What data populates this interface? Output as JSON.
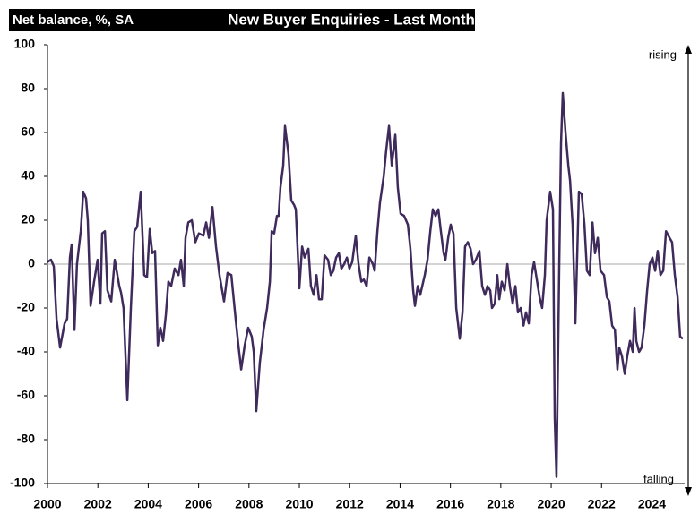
{
  "chart_data": {
    "type": "line",
    "title": "New Buyer Enquiries - Last Month",
    "y_label": "Net balance, %, SA",
    "annotations": [
      "rising",
      "falling"
    ],
    "x": [
      2000.0,
      2000.14,
      2000.25,
      2000.36,
      2000.5,
      2000.68,
      2000.78,
      2000.89,
      2000.96,
      2001.07,
      2001.17,
      2001.32,
      2001.42,
      2001.53,
      2001.6,
      2001.71,
      2001.85,
      2001.99,
      2002.1,
      2002.17,
      2002.28,
      2002.38,
      2002.53,
      2002.67,
      2002.85,
      2002.92,
      2003.02,
      2003.17,
      2003.31,
      2003.45,
      2003.56,
      2003.7,
      2003.84,
      2003.95,
      2004.06,
      2004.16,
      2004.27,
      2004.38,
      2004.48,
      2004.59,
      2004.7,
      2004.8,
      2004.91,
      2005.05,
      2005.2,
      2005.3,
      2005.41,
      2005.48,
      2005.59,
      2005.73,
      2005.87,
      2006.01,
      2006.19,
      2006.3,
      2006.41,
      2006.55,
      2006.69,
      2006.83,
      2007.01,
      2007.15,
      2007.3,
      2007.47,
      2007.58,
      2007.69,
      2007.83,
      2007.97,
      2008.11,
      2008.19,
      2008.29,
      2008.43,
      2008.58,
      2008.72,
      2008.83,
      2008.9,
      2009.0,
      2009.11,
      2009.18,
      2009.25,
      2009.36,
      2009.43,
      2009.57,
      2009.68,
      2009.79,
      2009.86,
      2010.0,
      2010.11,
      2010.21,
      2010.36,
      2010.46,
      2010.57,
      2010.68,
      2010.78,
      2010.89,
      2011.0,
      2011.14,
      2011.25,
      2011.35,
      2011.46,
      2011.57,
      2011.67,
      2011.78,
      2011.89,
      2011.99,
      2012.1,
      2012.24,
      2012.35,
      2012.46,
      2012.56,
      2012.67,
      2012.78,
      2012.92,
      2012.99,
      2013.1,
      2013.2,
      2013.35,
      2013.45,
      2013.56,
      2013.67,
      2013.81,
      2013.91,
      2014.02,
      2014.16,
      2014.31,
      2014.41,
      2014.52,
      2014.59,
      2014.7,
      2014.8,
      2014.98,
      2015.09,
      2015.2,
      2015.3,
      2015.41,
      2015.52,
      2015.62,
      2015.73,
      2015.8,
      2015.91,
      2016.01,
      2016.12,
      2016.23,
      2016.37,
      2016.48,
      2016.58,
      2016.69,
      2016.8,
      2016.9,
      2017.01,
      2017.15,
      2017.26,
      2017.37,
      2017.47,
      2017.58,
      2017.65,
      2017.76,
      2017.86,
      2017.94,
      2018.04,
      2018.15,
      2018.26,
      2018.36,
      2018.47,
      2018.58,
      2018.68,
      2018.79,
      2018.9,
      2019.0,
      2019.11,
      2019.22,
      2019.32,
      2019.43,
      2019.54,
      2019.64,
      2019.75,
      2019.82,
      2019.96,
      2020.07,
      2020.14,
      2020.21,
      2020.32,
      2020.39,
      2020.46,
      2020.57,
      2020.68,
      2020.75,
      2020.85,
      2020.96,
      2021.1,
      2021.21,
      2021.32,
      2021.42,
      2021.53,
      2021.64,
      2021.74,
      2021.85,
      2021.96,
      2022.1,
      2022.21,
      2022.31,
      2022.42,
      2022.53,
      2022.63,
      2022.7,
      2022.81,
      2022.92,
      2023.02,
      2023.13,
      2023.24,
      2023.31,
      2023.38,
      2023.49,
      2023.59,
      2023.7,
      2023.81,
      2023.91,
      2024.02,
      2024.13,
      2024.23,
      2024.34,
      2024.45,
      2024.56,
      2024.7,
      2024.8,
      2024.91,
      2025.02,
      2025.12,
      2025.23
    ],
    "series": [
      {
        "color": "#3f2a5c",
        "values": [
          1,
          2,
          -1,
          -25,
          -38,
          -27,
          -25,
          3,
          9,
          -30,
          0,
          15,
          33,
          30,
          20,
          -19,
          -8,
          2,
          -18,
          14,
          15,
          -12,
          -17,
          2,
          -10,
          -13,
          -20,
          -62,
          -20,
          15,
          17,
          33,
          -5,
          -6,
          16,
          5,
          6,
          -37,
          -29,
          -35,
          -23,
          -8,
          -10,
          -2,
          -5,
          2,
          -10,
          12,
          19,
          20,
          10,
          14,
          13,
          19,
          12,
          26,
          8,
          -5,
          -17,
          -4,
          -5,
          -25,
          -37,
          -48,
          -37,
          -29,
          -33,
          -40,
          -67,
          -45,
          -30,
          -20,
          -8,
          15,
          14,
          22,
          22,
          35,
          45,
          63,
          50,
          29,
          27,
          25,
          -11,
          8,
          3,
          7,
          -10,
          -14,
          -5,
          -16,
          -16,
          4,
          2,
          -5,
          -3,
          3,
          5,
          -2,
          0,
          3,
          -2,
          1,
          13,
          0,
          -8,
          -7,
          -10,
          3,
          0,
          -3,
          15,
          28,
          40,
          52,
          63,
          45,
          59,
          35,
          23,
          22,
          18,
          7,
          -12,
          -19,
          -10,
          -14,
          -5,
          2,
          15,
          25,
          22,
          25,
          15,
          5,
          2,
          12,
          18,
          14,
          -20,
          -34,
          -22,
          8,
          10,
          7,
          0,
          2,
          6,
          -10,
          -14,
          -10,
          -12,
          -20,
          -18,
          -5,
          -16,
          -8,
          -12,
          0,
          -10,
          -18,
          -10,
          -22,
          -20,
          -28,
          -22,
          -27,
          -5,
          1,
          -7,
          -15,
          -20,
          -5,
          20,
          33,
          25,
          -70,
          -97,
          0,
          55,
          78,
          60,
          45,
          38,
          18,
          -27,
          33,
          32,
          18,
          -3,
          -5,
          19,
          5,
          12,
          -3,
          -5,
          -15,
          -17,
          -28,
          -30,
          -48,
          -38,
          -42,
          -50,
          -42,
          -35,
          -40,
          -20,
          -35,
          -40,
          -38,
          -28,
          -12,
          0,
          3,
          -3,
          6,
          -5,
          -3,
          15,
          12,
          10,
          -5,
          -15,
          -33,
          -34
        ]
      }
    ],
    "xlim": [
      2000,
      2025.3
    ],
    "xticks": [
      2000,
      2002,
      2004,
      2006,
      2008,
      2010,
      2012,
      2014,
      2016,
      2018,
      2020,
      2022,
      2024
    ],
    "ylim": [
      -100,
      100
    ],
    "yticks": [
      -100,
      -80,
      -60,
      -40,
      -20,
      0,
      20,
      40,
      60,
      80,
      100
    ],
    "zero_line": true
  }
}
